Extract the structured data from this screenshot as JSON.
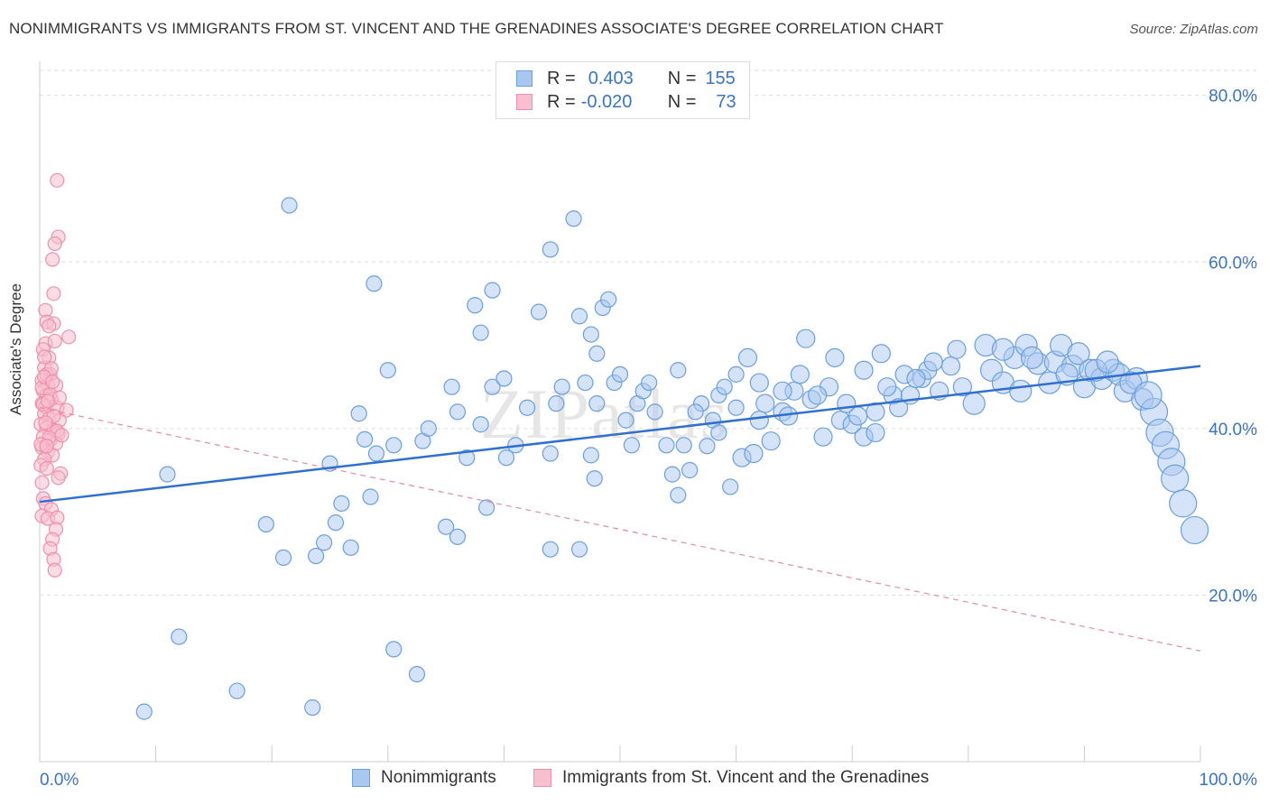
{
  "header": {
    "title": "NONIMMIGRANTS VS IMMIGRANTS FROM ST. VINCENT AND THE GRENADINES ASSOCIATE'S DEGREE CORRELATION CHART",
    "source": "Source: ZipAtlas.com"
  },
  "legend_top": {
    "rows": [
      {
        "r_label": "R =",
        "r_value": "0.403",
        "n_label": "N =",
        "n_value": "155"
      },
      {
        "r_label": "R =",
        "r_value": "-0.020",
        "n_label": "N =",
        "n_value": "73"
      }
    ]
  },
  "watermark": "ZIPatlas",
  "colors": {
    "blue": "#6a9fe0",
    "blue_fill": "#a9c8f0",
    "blue_line": "#2f6fd0",
    "pink": "#ef8fab",
    "pink_fill": "#f7bfd0",
    "pink_line": "#e58aa5",
    "axis_text": "#3a74c6",
    "grid": "#dddddd"
  },
  "chart_data": {
    "type": "scatter",
    "title": "NONIMMIGRANTS VS IMMIGRANTS FROM ST. VINCENT AND THE GRENADINES ASSOCIATE'S DEGREE CORRELATION CHART",
    "xlabel": "",
    "ylabel": "Associate's Degree",
    "xlim": [
      0,
      100
    ],
    "ylim": [
      0,
      83
    ],
    "x_tick_labels": [
      "0.0%",
      "100.0%"
    ],
    "y_ticks": [
      20,
      40,
      60,
      80
    ],
    "y_tick_labels": [
      "20.0%",
      "40.0%",
      "60.0%",
      "80.0%"
    ],
    "legend": [
      "Nonimmigrants",
      "Immigrants from St. Vincent and the Grenadines"
    ],
    "series": [
      {
        "name": "Nonimmigrants",
        "color": "#6a9fe0",
        "r": 0.403,
        "n": 155,
        "trend": {
          "x": [
            0,
            100
          ],
          "y": [
            31.2,
            47.5
          ]
        },
        "points": [
          [
            9,
            6
          ],
          [
            12,
            15
          ],
          [
            17,
            8.5
          ],
          [
            23.5,
            6.5
          ],
          [
            30.5,
            13.5
          ],
          [
            32.5,
            10.5
          ],
          [
            11,
            34.5
          ],
          [
            19.5,
            28.5
          ],
          [
            21,
            24.5
          ],
          [
            23.8,
            24.7
          ],
          [
            24.5,
            26.3
          ],
          [
            25.5,
            28.7
          ],
          [
            26,
            31
          ],
          [
            26.8,
            25.7
          ],
          [
            28.5,
            31.8
          ],
          [
            25,
            35.8
          ],
          [
            27.5,
            41.8
          ],
          [
            28,
            38.7
          ],
          [
            29,
            37
          ],
          [
            30.5,
            38
          ],
          [
            33,
            38.5
          ],
          [
            33.5,
            40
          ],
          [
            35,
            28.2
          ],
          [
            36,
            27
          ],
          [
            35.5,
            45
          ],
          [
            36,
            42
          ],
          [
            36.8,
            36.5
          ],
          [
            38,
            40.5
          ],
          [
            39,
            45
          ],
          [
            40,
            46
          ],
          [
            40.2,
            36.5
          ],
          [
            41,
            38
          ],
          [
            42,
            42.5
          ],
          [
            44,
            37
          ],
          [
            44.5,
            43
          ],
          [
            45,
            45
          ],
          [
            46.5,
            25.5
          ],
          [
            47,
            45.5
          ],
          [
            47.5,
            36.8
          ],
          [
            30,
            47
          ],
          [
            38,
            51.5
          ],
          [
            37.5,
            54.8
          ],
          [
            39,
            56.6
          ],
          [
            43,
            54
          ],
          [
            44,
            61.5
          ],
          [
            46.5,
            53.5
          ],
          [
            48,
            49
          ],
          [
            47.5,
            51.3
          ],
          [
            48.5,
            54.5
          ],
          [
            49,
            55.5
          ],
          [
            21.5,
            66.8
          ],
          [
            46,
            65.2
          ],
          [
            28.8,
            57.4
          ],
          [
            38.5,
            30.5
          ],
          [
            44,
            25.5
          ],
          [
            47.8,
            34
          ],
          [
            48,
            43
          ],
          [
            49.5,
            45.5
          ],
          [
            50,
            46.5
          ],
          [
            50.5,
            41
          ],
          [
            51,
            38
          ],
          [
            51.5,
            43
          ],
          [
            52,
            44.5
          ],
          [
            53,
            42
          ],
          [
            54,
            38
          ],
          [
            54.5,
            34.5
          ],
          [
            55,
            32
          ],
          [
            55.5,
            38
          ],
          [
            56,
            35
          ],
          [
            57.5,
            37.9
          ],
          [
            57,
            43
          ],
          [
            58,
            41
          ],
          [
            58.5,
            44
          ],
          [
            59.5,
            33
          ],
          [
            60,
            46.5
          ],
          [
            60.5,
            36.5
          ],
          [
            61.5,
            37
          ],
          [
            61,
            48.5
          ],
          [
            62,
            45.5
          ],
          [
            63,
            38.5
          ],
          [
            64,
            42
          ],
          [
            64.5,
            41.5
          ],
          [
            65,
            44.5
          ],
          [
            66.5,
            43.5
          ],
          [
            67.5,
            39
          ],
          [
            68,
            45
          ],
          [
            69,
            41
          ],
          [
            70,
            40.5
          ],
          [
            71,
            39
          ],
          [
            72,
            39.5
          ],
          [
            73.5,
            44
          ],
          [
            74,
            42.5
          ],
          [
            75,
            44
          ],
          [
            76,
            46
          ],
          [
            77.5,
            44.5
          ],
          [
            78.5,
            47.5
          ],
          [
            79.5,
            45
          ],
          [
            80.5,
            43
          ],
          [
            81.5,
            50
          ],
          [
            82,
            47
          ],
          [
            83,
            45.5
          ],
          [
            84,
            48.5
          ],
          [
            84.5,
            44.5
          ],
          [
            85,
            50
          ],
          [
            86,
            47.8
          ],
          [
            87,
            45.5
          ],
          [
            87.5,
            48
          ],
          [
            88,
            50
          ],
          [
            89,
            47.5
          ],
          [
            89.5,
            49
          ],
          [
            90,
            45
          ],
          [
            90.5,
            47
          ],
          [
            91.5,
            46
          ],
          [
            92.5,
            47
          ],
          [
            93,
            46.5
          ],
          [
            93.5,
            44.5
          ],
          [
            94.5,
            46
          ],
          [
            95,
            43.5
          ],
          [
            96,
            42
          ],
          [
            96.5,
            39.5
          ],
          [
            97,
            38
          ],
          [
            97.5,
            36
          ],
          [
            97.8,
            34
          ],
          [
            98.5,
            31
          ],
          [
            99.5,
            27.8
          ],
          [
            68.5,
            48.5
          ],
          [
            66,
            50.8
          ],
          [
            71,
            47
          ],
          [
            72.5,
            49
          ],
          [
            76.5,
            47
          ],
          [
            79,
            49.5
          ],
          [
            55,
            47
          ],
          [
            60,
            42.5
          ],
          [
            62.5,
            43
          ],
          [
            64,
            44.5
          ],
          [
            69.5,
            43
          ],
          [
            72,
            42
          ],
          [
            74.5,
            46.5
          ],
          [
            77,
            48
          ],
          [
            83,
            49.5
          ],
          [
            85.5,
            48.5
          ],
          [
            88.5,
            46.5
          ],
          [
            91,
            47
          ],
          [
            92,
            48
          ],
          [
            94,
            45.5
          ],
          [
            95.5,
            44
          ],
          [
            52.5,
            45.5
          ],
          [
            56.5,
            42
          ],
          [
            58.5,
            39.5
          ],
          [
            59,
            45
          ],
          [
            62,
            41
          ],
          [
            65.5,
            46.5
          ],
          [
            67,
            44
          ],
          [
            70.5,
            41.5
          ],
          [
            73,
            45
          ],
          [
            75.5,
            46
          ]
        ]
      },
      {
        "name": "Immigrants from St. Vincent and the Grenadines",
        "color": "#ef8fab",
        "r": -0.02,
        "n": 73,
        "trend": {
          "x": [
            0,
            100
          ],
          "y": [
            42.5,
            13.3
          ]
        },
        "points": [
          [
            1.5,
            69.8
          ],
          [
            1.6,
            63
          ],
          [
            1.3,
            62.2
          ],
          [
            1.1,
            60.3
          ],
          [
            1.2,
            56.2
          ],
          [
            0.5,
            54.2
          ],
          [
            0.6,
            52.8
          ],
          [
            1.2,
            52.6
          ],
          [
            2.5,
            51
          ],
          [
            0.5,
            50.2
          ],
          [
            0.3,
            49.5
          ],
          [
            0.8,
            48.5
          ],
          [
            0.4,
            47.3
          ],
          [
            0.9,
            46.5
          ],
          [
            0.2,
            45.8
          ],
          [
            0.7,
            45.3
          ],
          [
            1.4,
            45.2
          ],
          [
            0.3,
            44.5
          ],
          [
            0.6,
            44
          ],
          [
            1.0,
            43.5
          ],
          [
            0.2,
            43
          ],
          [
            0.5,
            42.6
          ],
          [
            1.5,
            42.5
          ],
          [
            2.3,
            42.2
          ],
          [
            0.4,
            41.8
          ],
          [
            0.8,
            41.2
          ],
          [
            1.7,
            41
          ],
          [
            0.1,
            40.5
          ],
          [
            0.6,
            40.1
          ],
          [
            1.2,
            39.8
          ],
          [
            1.6,
            39.4
          ],
          [
            0.3,
            39
          ],
          [
            0.9,
            38.6
          ],
          [
            1.4,
            38.2
          ],
          [
            0.2,
            37.7
          ],
          [
            0.7,
            37.2
          ],
          [
            1.1,
            36.8
          ],
          [
            0.4,
            36.3
          ],
          [
            0.1,
            35.6
          ],
          [
            0.6,
            35.2
          ],
          [
            1.8,
            34.6
          ],
          [
            1.6,
            34.1
          ],
          [
            0.3,
            31.6
          ],
          [
            0.5,
            31
          ],
          [
            1.0,
            30.3
          ],
          [
            0.2,
            29.5
          ],
          [
            0.7,
            29.2
          ],
          [
            1.5,
            29.3
          ],
          [
            1.4,
            27.9
          ],
          [
            1.1,
            26.7
          ],
          [
            0.9,
            25.6
          ],
          [
            1.2,
            24.3
          ],
          [
            1.3,
            23
          ],
          [
            0.2,
            33.5
          ],
          [
            0.6,
            46.5
          ],
          [
            1.0,
            47.2
          ],
          [
            0.4,
            48.6
          ],
          [
            1.3,
            50.5
          ],
          [
            0.8,
            52.3
          ],
          [
            0.2,
            44.9
          ],
          [
            0.9,
            44.1
          ],
          [
            1.7,
            43.7
          ],
          [
            0.3,
            42.9
          ],
          [
            1.2,
            41.5
          ],
          [
            0.5,
            40.7
          ],
          [
            1.5,
            39.7
          ],
          [
            0.8,
            38.9
          ],
          [
            0.1,
            38.1
          ],
          [
            0.4,
            46.2
          ],
          [
            1.1,
            45.6
          ],
          [
            0.7,
            43.3
          ],
          [
            1.9,
            39.2
          ],
          [
            0.6,
            37.9
          ]
        ]
      }
    ]
  }
}
